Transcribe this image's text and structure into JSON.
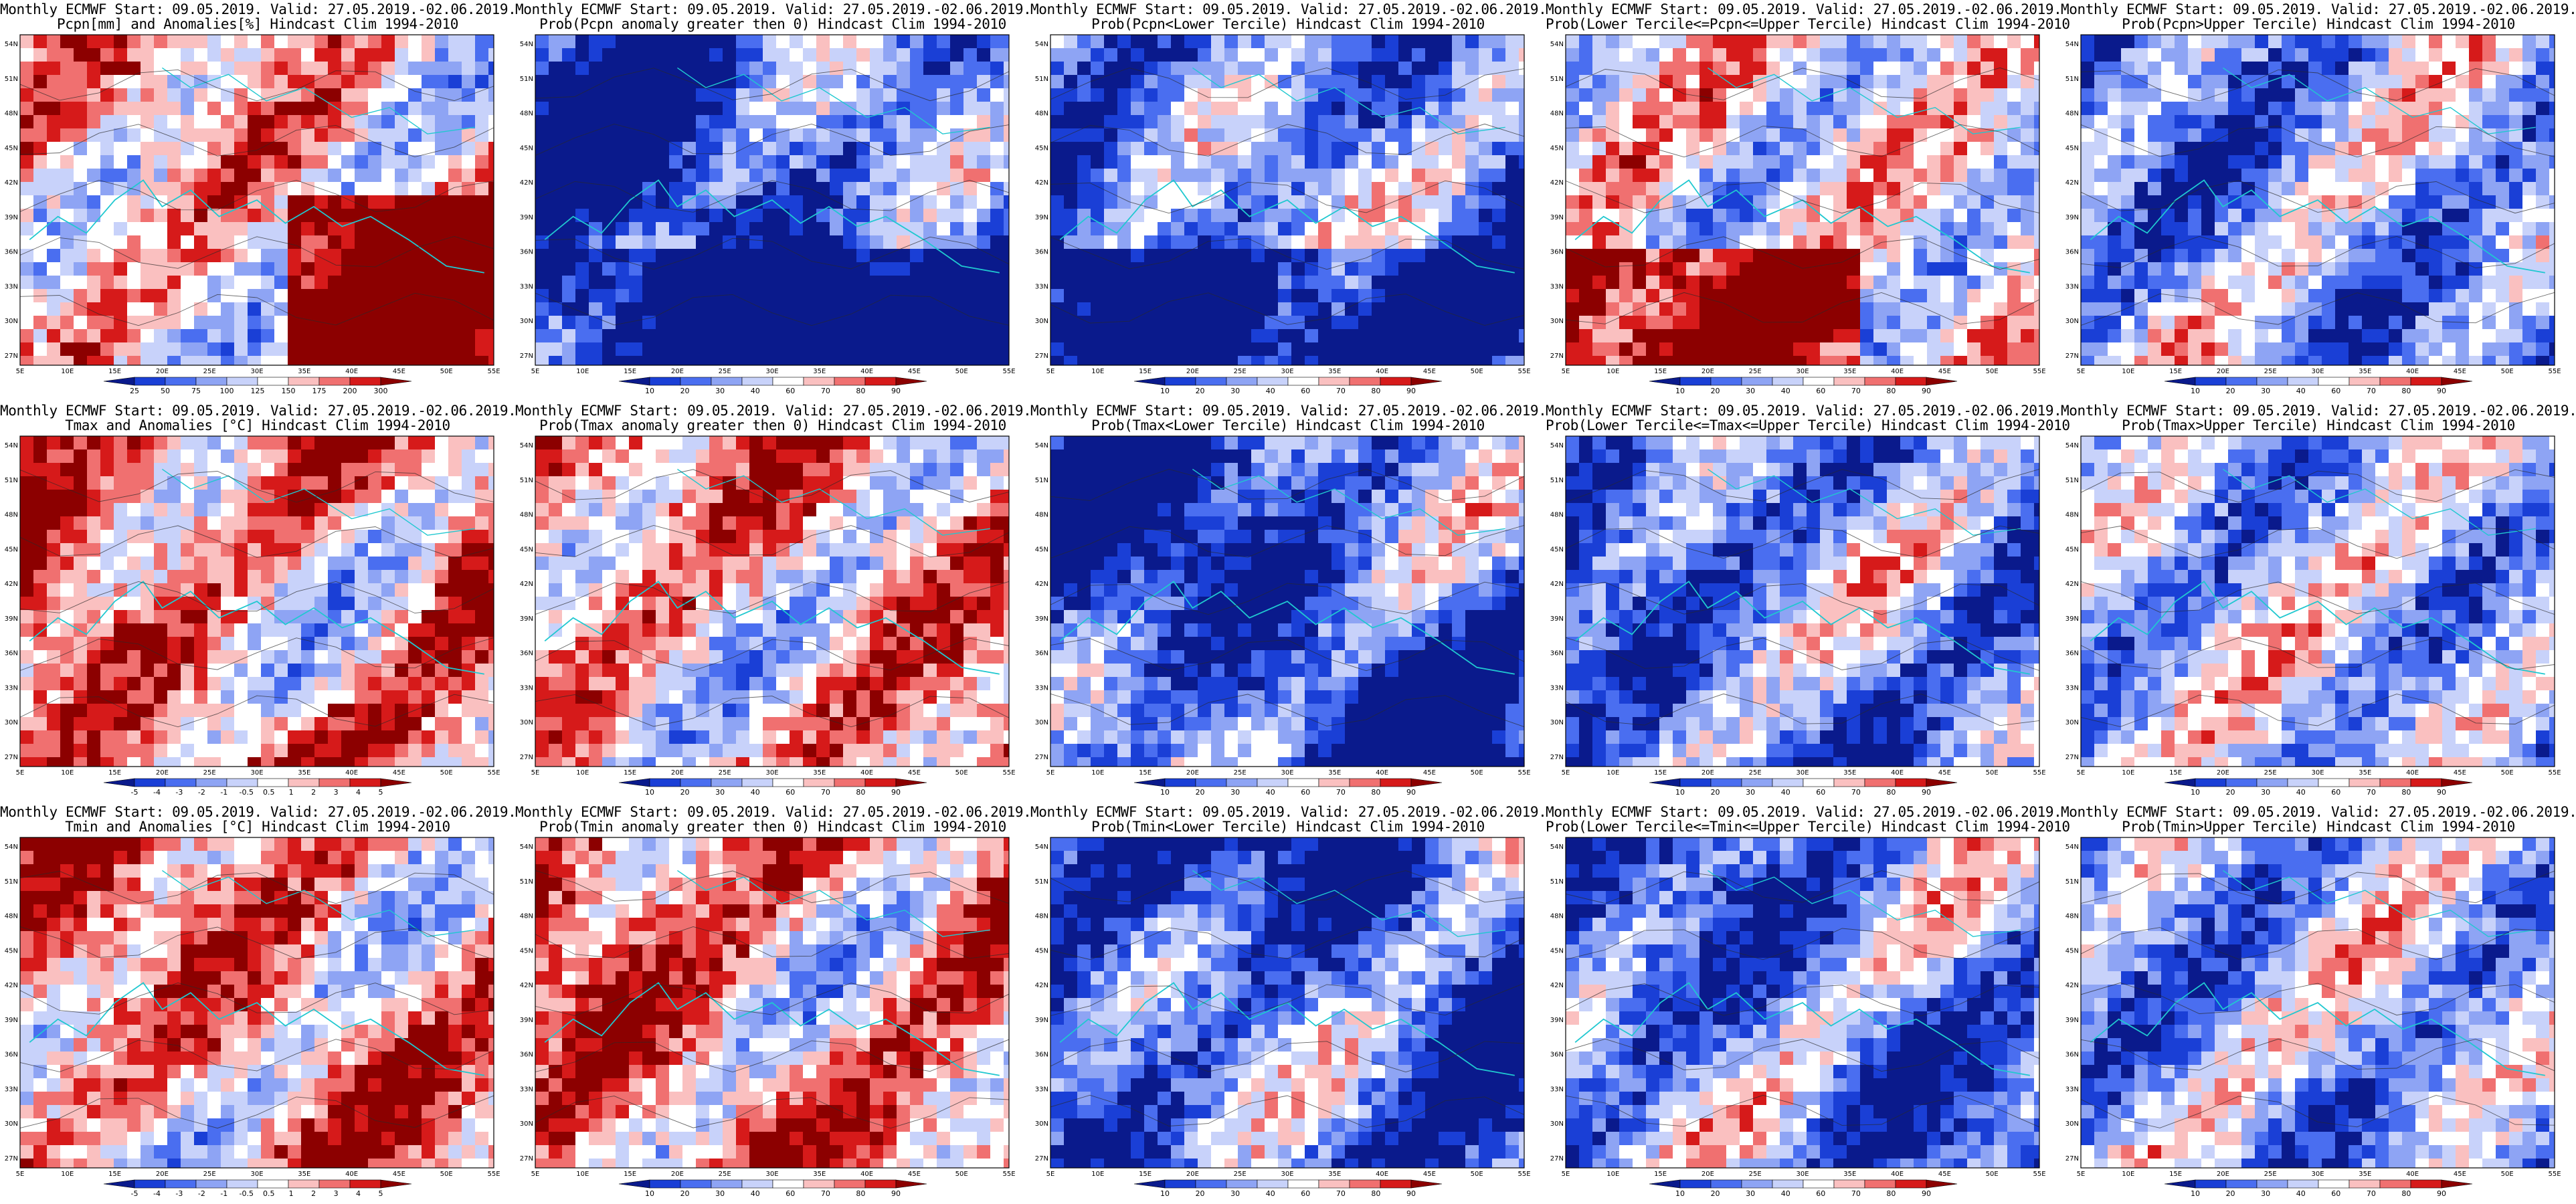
{
  "figure": {
    "layout": {
      "rows": 3,
      "cols": 5
    },
    "panels": [
      {
        "title": [
          "Monthly ECMWF Start: 09.05.2019. Valid: 27.05.2019.-02.06.2019.",
          "Pcpn[mm] and Anomalies[%] Hindcast Clim 1994-2010"
        ],
        "variable": "precipitation",
        "kind": "anomaly_pct",
        "colorbar": {
          "labels": [
            "25",
            "50",
            "75",
            "100",
            "125",
            "150",
            "175",
            "200",
            "300"
          ],
          "colors": [
            "#0a1a8c",
            "#1a3fd6",
            "#4a6ef0",
            "#8ea4f4",
            "#c8d2fa",
            "#ffffff",
            "#fac0c0",
            "#f07070",
            "#d61a1a",
            "#8c0000"
          ]
        }
      },
      {
        "title": [
          "Monthly ECMWF Start: 09.05.2019. Valid: 27.05.2019.-02.06.2019.",
          "Prob(Pcpn anomaly greater then 0) Hindcast Clim 1994-2010"
        ],
        "variable": "precipitation",
        "kind": "probability",
        "colorbar": {
          "labels": [
            "10",
            "20",
            "30",
            "40",
            "60",
            "70",
            "80",
            "90"
          ],
          "colors": [
            "#0a1a8c",
            "#1a3fd6",
            "#4a6ef0",
            "#8ea4f4",
            "#c8d2fa",
            "#ffffff",
            "#fac0c0",
            "#f07070",
            "#d61a1a",
            "#8c0000"
          ]
        }
      },
      {
        "title": [
          "Monthly ECMWF Start: 09.05.2019. Valid: 27.05.2019.-02.06.2019.",
          "Prob(Pcpn<Lower Tercile) Hindcast Clim 1994-2010"
        ],
        "variable": "precipitation",
        "kind": "probability",
        "colorbar": {
          "labels": [
            "10",
            "20",
            "30",
            "40",
            "60",
            "70",
            "80",
            "90"
          ],
          "colors": [
            "#0a1a8c",
            "#1a3fd6",
            "#4a6ef0",
            "#8ea4f4",
            "#c8d2fa",
            "#ffffff",
            "#fac0c0",
            "#f07070",
            "#d61a1a",
            "#8c0000"
          ]
        }
      },
      {
        "title": [
          "Monthly ECMWF Start: 09.05.2019. Valid: 27.05.2019.-02.06.2019.",
          "Prob(Lower Tercile<=Pcpn<=Upper Tercile) Hindcast Clim 1994-2010"
        ],
        "variable": "precipitation",
        "kind": "probability",
        "colorbar": {
          "labels": [
            "10",
            "20",
            "30",
            "40",
            "60",
            "70",
            "80",
            "90"
          ],
          "colors": [
            "#0a1a8c",
            "#1a3fd6",
            "#4a6ef0",
            "#8ea4f4",
            "#c8d2fa",
            "#ffffff",
            "#fac0c0",
            "#f07070",
            "#d61a1a",
            "#8c0000"
          ]
        }
      },
      {
        "title": [
          "Monthly ECMWF Start: 09.05.2019. Valid: 27.05.2019.-02.06.2019.",
          "Prob(Pcpn>Upper Tercile) Hindcast Clim 1994-2010"
        ],
        "variable": "precipitation",
        "kind": "probability",
        "colorbar": {
          "labels": [
            "10",
            "20",
            "30",
            "40",
            "60",
            "70",
            "80",
            "90"
          ],
          "colors": [
            "#0a1a8c",
            "#1a3fd6",
            "#4a6ef0",
            "#8ea4f4",
            "#c8d2fa",
            "#ffffff",
            "#fac0c0",
            "#f07070",
            "#d61a1a",
            "#8c0000"
          ]
        }
      },
      {
        "title": [
          "Monthly ECMWF Start: 09.05.2019. Valid: 27.05.2019.-02.06.2019.",
          "Tmax and Anomalies [°C] Hindcast Clim 1994-2010"
        ],
        "variable": "tmax",
        "kind": "anomaly_c",
        "colorbar": {
          "labels": [
            "-5",
            "-4",
            "-3",
            "-2",
            "-1",
            "-0.5",
            "0.5",
            "1",
            "2",
            "3",
            "4",
            "5"
          ],
          "colors": [
            "#0a1a8c",
            "#1a3fd6",
            "#4a6ef0",
            "#8ea4f4",
            "#c8d2fa",
            "#ffffff",
            "#fac0c0",
            "#f07070",
            "#d61a1a",
            "#8c0000"
          ]
        }
      },
      {
        "title": [
          "Monthly ECMWF Start: 09.05.2019. Valid: 27.05.2019.-02.06.2019.",
          "Prob(Tmax anomaly greater then 0) Hindcast Clim 1994-2010"
        ],
        "variable": "tmax",
        "kind": "probability",
        "colorbar": {
          "labels": [
            "10",
            "20",
            "30",
            "40",
            "60",
            "70",
            "80",
            "90"
          ],
          "colors": [
            "#0a1a8c",
            "#1a3fd6",
            "#4a6ef0",
            "#8ea4f4",
            "#c8d2fa",
            "#ffffff",
            "#fac0c0",
            "#f07070",
            "#d61a1a",
            "#8c0000"
          ]
        }
      },
      {
        "title": [
          "Monthly ECMWF Start: 09.05.2019. Valid: 27.05.2019.-02.06.2019.",
          "Prob(Tmax<Lower Tercile) Hindcast Clim 1994-2010"
        ],
        "variable": "tmax",
        "kind": "probability",
        "colorbar": {
          "labels": [
            "10",
            "20",
            "30",
            "40",
            "60",
            "70",
            "80",
            "90"
          ],
          "colors": [
            "#0a1a8c",
            "#1a3fd6",
            "#4a6ef0",
            "#8ea4f4",
            "#c8d2fa",
            "#ffffff",
            "#fac0c0",
            "#f07070",
            "#d61a1a",
            "#8c0000"
          ]
        }
      },
      {
        "title": [
          "Monthly ECMWF Start: 09.05.2019. Valid: 27.05.2019.-02.06.2019.",
          "Prob(Lower Tercile<=Tmax<=Upper Tercile) Hindcast Clim 1994-2010"
        ],
        "variable": "tmax",
        "kind": "probability",
        "colorbar": {
          "labels": [
            "10",
            "20",
            "30",
            "40",
            "60",
            "70",
            "80",
            "90"
          ],
          "colors": [
            "#0a1a8c",
            "#1a3fd6",
            "#4a6ef0",
            "#8ea4f4",
            "#c8d2fa",
            "#ffffff",
            "#fac0c0",
            "#f07070",
            "#d61a1a",
            "#8c0000"
          ]
        }
      },
      {
        "title": [
          "Monthly ECMWF Start: 09.05.2019. Valid: 27.05.2019.-02.06.2019.",
          "Prob(Tmax>Upper Tercile) Hindcast Clim 1994-2010"
        ],
        "variable": "tmax",
        "kind": "probability",
        "colorbar": {
          "labels": [
            "10",
            "20",
            "30",
            "40",
            "60",
            "70",
            "80",
            "90"
          ],
          "colors": [
            "#0a1a8c",
            "#1a3fd6",
            "#4a6ef0",
            "#8ea4f4",
            "#c8d2fa",
            "#ffffff",
            "#fac0c0",
            "#f07070",
            "#d61a1a",
            "#8c0000"
          ]
        }
      },
      {
        "title": [
          "Monthly ECMWF Start: 09.05.2019. Valid: 27.05.2019.-02.06.2019.",
          "Tmin and Anomalies [°C] Hindcast Clim 1994-2010"
        ],
        "variable": "tmin",
        "kind": "anomaly_c",
        "colorbar": {
          "labels": [
            "-5",
            "-4",
            "-3",
            "-2",
            "-1",
            "-0.5",
            "0.5",
            "1",
            "2",
            "3",
            "4",
            "5"
          ],
          "colors": [
            "#0a1a8c",
            "#1a3fd6",
            "#4a6ef0",
            "#8ea4f4",
            "#c8d2fa",
            "#ffffff",
            "#fac0c0",
            "#f07070",
            "#d61a1a",
            "#8c0000"
          ]
        }
      },
      {
        "title": [
          "Monthly ECMWF Start: 09.05.2019. Valid: 27.05.2019.-02.06.2019.",
          "Prob(Tmin anomaly greater then 0) Hindcast Clim 1994-2010"
        ],
        "variable": "tmin",
        "kind": "probability",
        "colorbar": {
          "labels": [
            "10",
            "20",
            "30",
            "40",
            "60",
            "70",
            "80",
            "90"
          ],
          "colors": [
            "#0a1a8c",
            "#1a3fd6",
            "#4a6ef0",
            "#8ea4f4",
            "#c8d2fa",
            "#ffffff",
            "#fac0c0",
            "#f07070",
            "#d61a1a",
            "#8c0000"
          ]
        }
      },
      {
        "title": [
          "Monthly ECMWF Start: 09.05.2019. Valid: 27.05.2019.-02.06.2019.",
          "Prob(Tmin<Lower Tercile) Hindcast Clim 1994-2010"
        ],
        "variable": "tmin",
        "kind": "probability",
        "colorbar": {
          "labels": [
            "10",
            "20",
            "30",
            "40",
            "60",
            "70",
            "80",
            "90"
          ],
          "colors": [
            "#0a1a8c",
            "#1a3fd6",
            "#4a6ef0",
            "#8ea4f4",
            "#c8d2fa",
            "#ffffff",
            "#fac0c0",
            "#f07070",
            "#d61a1a",
            "#8c0000"
          ]
        }
      },
      {
        "title": [
          "Monthly ECMWF Start: 09.05.2019. Valid: 27.05.2019.-02.06.2019.",
          "Prob(Lower Tercile<=Tmin<=Upper Tercile) Hindcast Clim 1994-2010"
        ],
        "variable": "tmin",
        "kind": "probability",
        "colorbar": {
          "labels": [
            "10",
            "20",
            "30",
            "40",
            "60",
            "70",
            "80",
            "90"
          ],
          "colors": [
            "#0a1a8c",
            "#1a3fd6",
            "#4a6ef0",
            "#8ea4f4",
            "#c8d2fa",
            "#ffffff",
            "#fac0c0",
            "#f07070",
            "#d61a1a",
            "#8c0000"
          ]
        }
      },
      {
        "title": [
          "Monthly ECMWF Start: 09.05.2019. Valid: 27.05.2019.-02.06.2019.",
          "Prob(Tmin>Upper Tercile) Hindcast Clim 1994-2010"
        ],
        "variable": "tmin",
        "kind": "probability",
        "colorbar": {
          "labels": [
            "10",
            "20",
            "30",
            "40",
            "60",
            "70",
            "80",
            "90"
          ],
          "colors": [
            "#0a1a8c",
            "#1a3fd6",
            "#4a6ef0",
            "#8ea4f4",
            "#c8d2fa",
            "#ffffff",
            "#fac0c0",
            "#f07070",
            "#d61a1a",
            "#8c0000"
          ]
        }
      }
    ],
    "axes": {
      "lat_labels": [
        "54N",
        "51N",
        "48N",
        "45N",
        "42N",
        "39N",
        "36N",
        "33N",
        "30N",
        "27N"
      ],
      "lon_labels": [
        "5E",
        "10E",
        "15E",
        "20E",
        "25E",
        "30E",
        "35E",
        "40E",
        "45E",
        "50E",
        "55E"
      ]
    },
    "colors": {
      "coastline": "#20c8d0",
      "contour": "#2a2a2a",
      "frame": "#000000"
    }
  }
}
